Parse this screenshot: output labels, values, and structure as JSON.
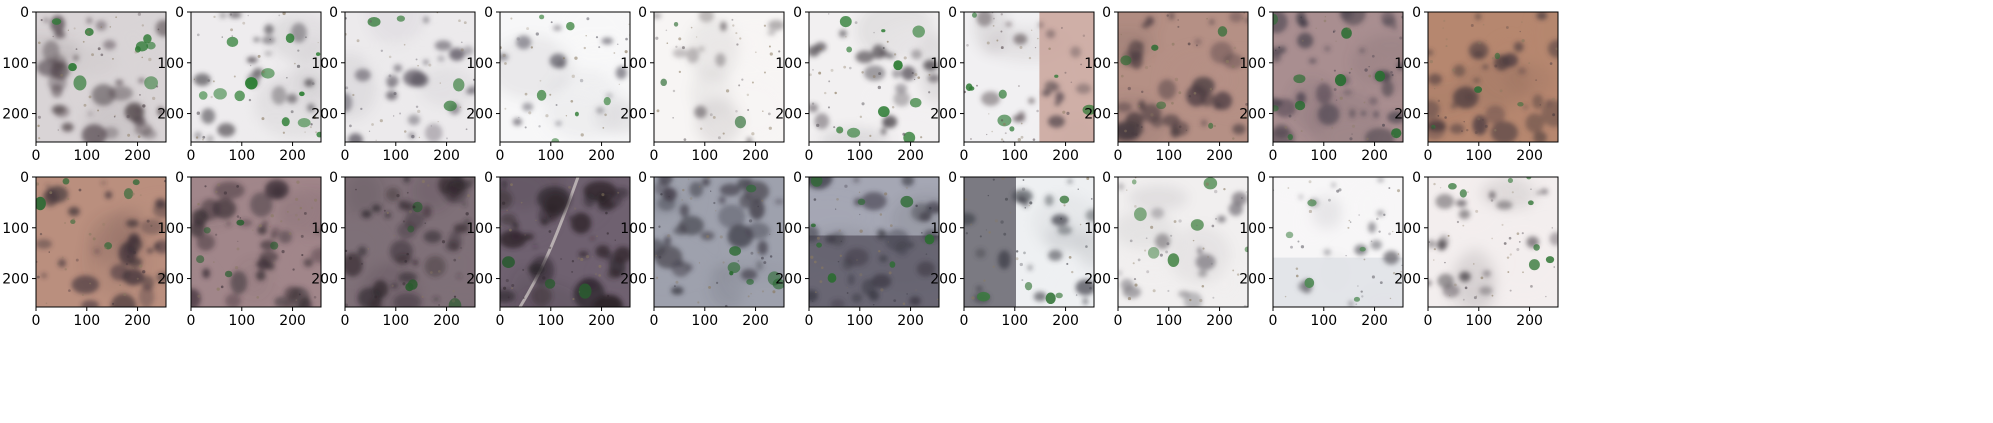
{
  "figure": {
    "grid": {
      "rows": 2,
      "cols": 10
    },
    "x_ticks": [
      "0",
      "100",
      "200"
    ],
    "y_ticks": [
      "0",
      "100",
      "200"
    ],
    "axis_extent": [
      0,
      256
    ],
    "panels": [
      {
        "base": "#d9d4d6",
        "dark": "#4d4147",
        "green": "#2e7a35",
        "coverage": 0.55,
        "greens": 0.35,
        "path": false,
        "split": null
      },
      {
        "base": "#eeecee",
        "dark": "#545056",
        "green": "#2b7d32",
        "coverage": 0.3,
        "greens": 0.5,
        "path": false,
        "split": null
      },
      {
        "base": "#eceaec",
        "dark": "#5a5560",
        "green": "#3b7f40",
        "coverage": 0.32,
        "greens": 0.1,
        "path": false,
        "split": null
      },
      {
        "base": "#f7f7f8",
        "dark": "#62606a",
        "green": "#468a4a",
        "coverage": 0.1,
        "greens": 0.2,
        "path": false,
        "split": null
      },
      {
        "base": "#f7f5f4",
        "dark": "#6b6468",
        "green": "#5a8a5e",
        "coverage": 0.08,
        "greens": 0.05,
        "path": false,
        "split": null
      },
      {
        "base": "#f2f0f1",
        "dark": "#4f4a50",
        "green": "#2f7d35",
        "coverage": 0.3,
        "greens": 0.4,
        "path": false,
        "split": null
      },
      {
        "base": "#f1f0f2",
        "dark": "#5a4d52",
        "green": "#2e7a35",
        "coverage": 0.22,
        "greens": 0.3,
        "path": false,
        "split": {
          "side": "right",
          "color": "#c9a39a",
          "from": 0.58
        }
      },
      {
        "base": "#b59085",
        "dark": "#4a3b40",
        "green": "#2f6d34",
        "coverage": 0.6,
        "greens": 0.15,
        "path": false,
        "split": null
      },
      {
        "base": "#a98e90",
        "dark": "#3f3a45",
        "green": "#2b6e33",
        "coverage": 0.62,
        "greens": 0.35,
        "path": false,
        "split": null
      },
      {
        "base": "#b6876f",
        "dark": "#4a3a3e",
        "green": "#346f3a",
        "coverage": 0.55,
        "greens": 0.1,
        "path": false,
        "split": null
      },
      {
        "base": "#ba8f7e",
        "dark": "#3f3238",
        "green": "#2f6a36",
        "coverage": 0.55,
        "greens": 0.2,
        "path": false,
        "split": null
      },
      {
        "base": "#a1868a",
        "dark": "#372c33",
        "green": "#2a6030",
        "coverage": 0.65,
        "greens": 0.15,
        "path": false,
        "split": null
      },
      {
        "base": "#7f7078",
        "dark": "#2f262c",
        "green": "#2b5b2f",
        "coverage": 0.75,
        "greens": 0.15,
        "path": false,
        "split": null
      },
      {
        "base": "#6f6170",
        "dark": "#2c2329",
        "green": "#2a5a30",
        "coverage": 0.7,
        "greens": 0.05,
        "path": true,
        "split": null
      },
      {
        "base": "#9ea1ad",
        "dark": "#3d3a44",
        "green": "#2c6b33",
        "coverage": 0.6,
        "greens": 0.25,
        "path": false,
        "split": null
      },
      {
        "base": "#a5a7b4",
        "dark": "#373540",
        "green": "#2d6c33",
        "coverage": 0.55,
        "greens": 0.3,
        "path": false,
        "split": {
          "side": "bottom",
          "color": "#5e5a67",
          "from": 0.45
        }
      },
      {
        "base": "#eef0f2",
        "dark": "#3c3d45",
        "green": "#3b7a3f",
        "coverage": 0.25,
        "greens": 0.15,
        "path": false,
        "split": {
          "side": "left",
          "color": "#66656f",
          "from": 0.4
        }
      },
      {
        "base": "#f1efef",
        "dark": "#6a666d",
        "green": "#4e8a4f",
        "coverage": 0.15,
        "greens": 0.25,
        "path": false,
        "split": null
      },
      {
        "base": "#f7f6f7",
        "dark": "#6a6970",
        "green": "#4f8a54",
        "coverage": 0.12,
        "greens": 0.15,
        "path": false,
        "split": {
          "side": "bottom",
          "color": "#dfe2e6",
          "from": 0.62
        }
      },
      {
        "base": "#f3eeee",
        "dark": "#4e474d",
        "green": "#2f7534",
        "coverage": 0.25,
        "greens": 0.3,
        "path": false,
        "split": null
      }
    ]
  }
}
